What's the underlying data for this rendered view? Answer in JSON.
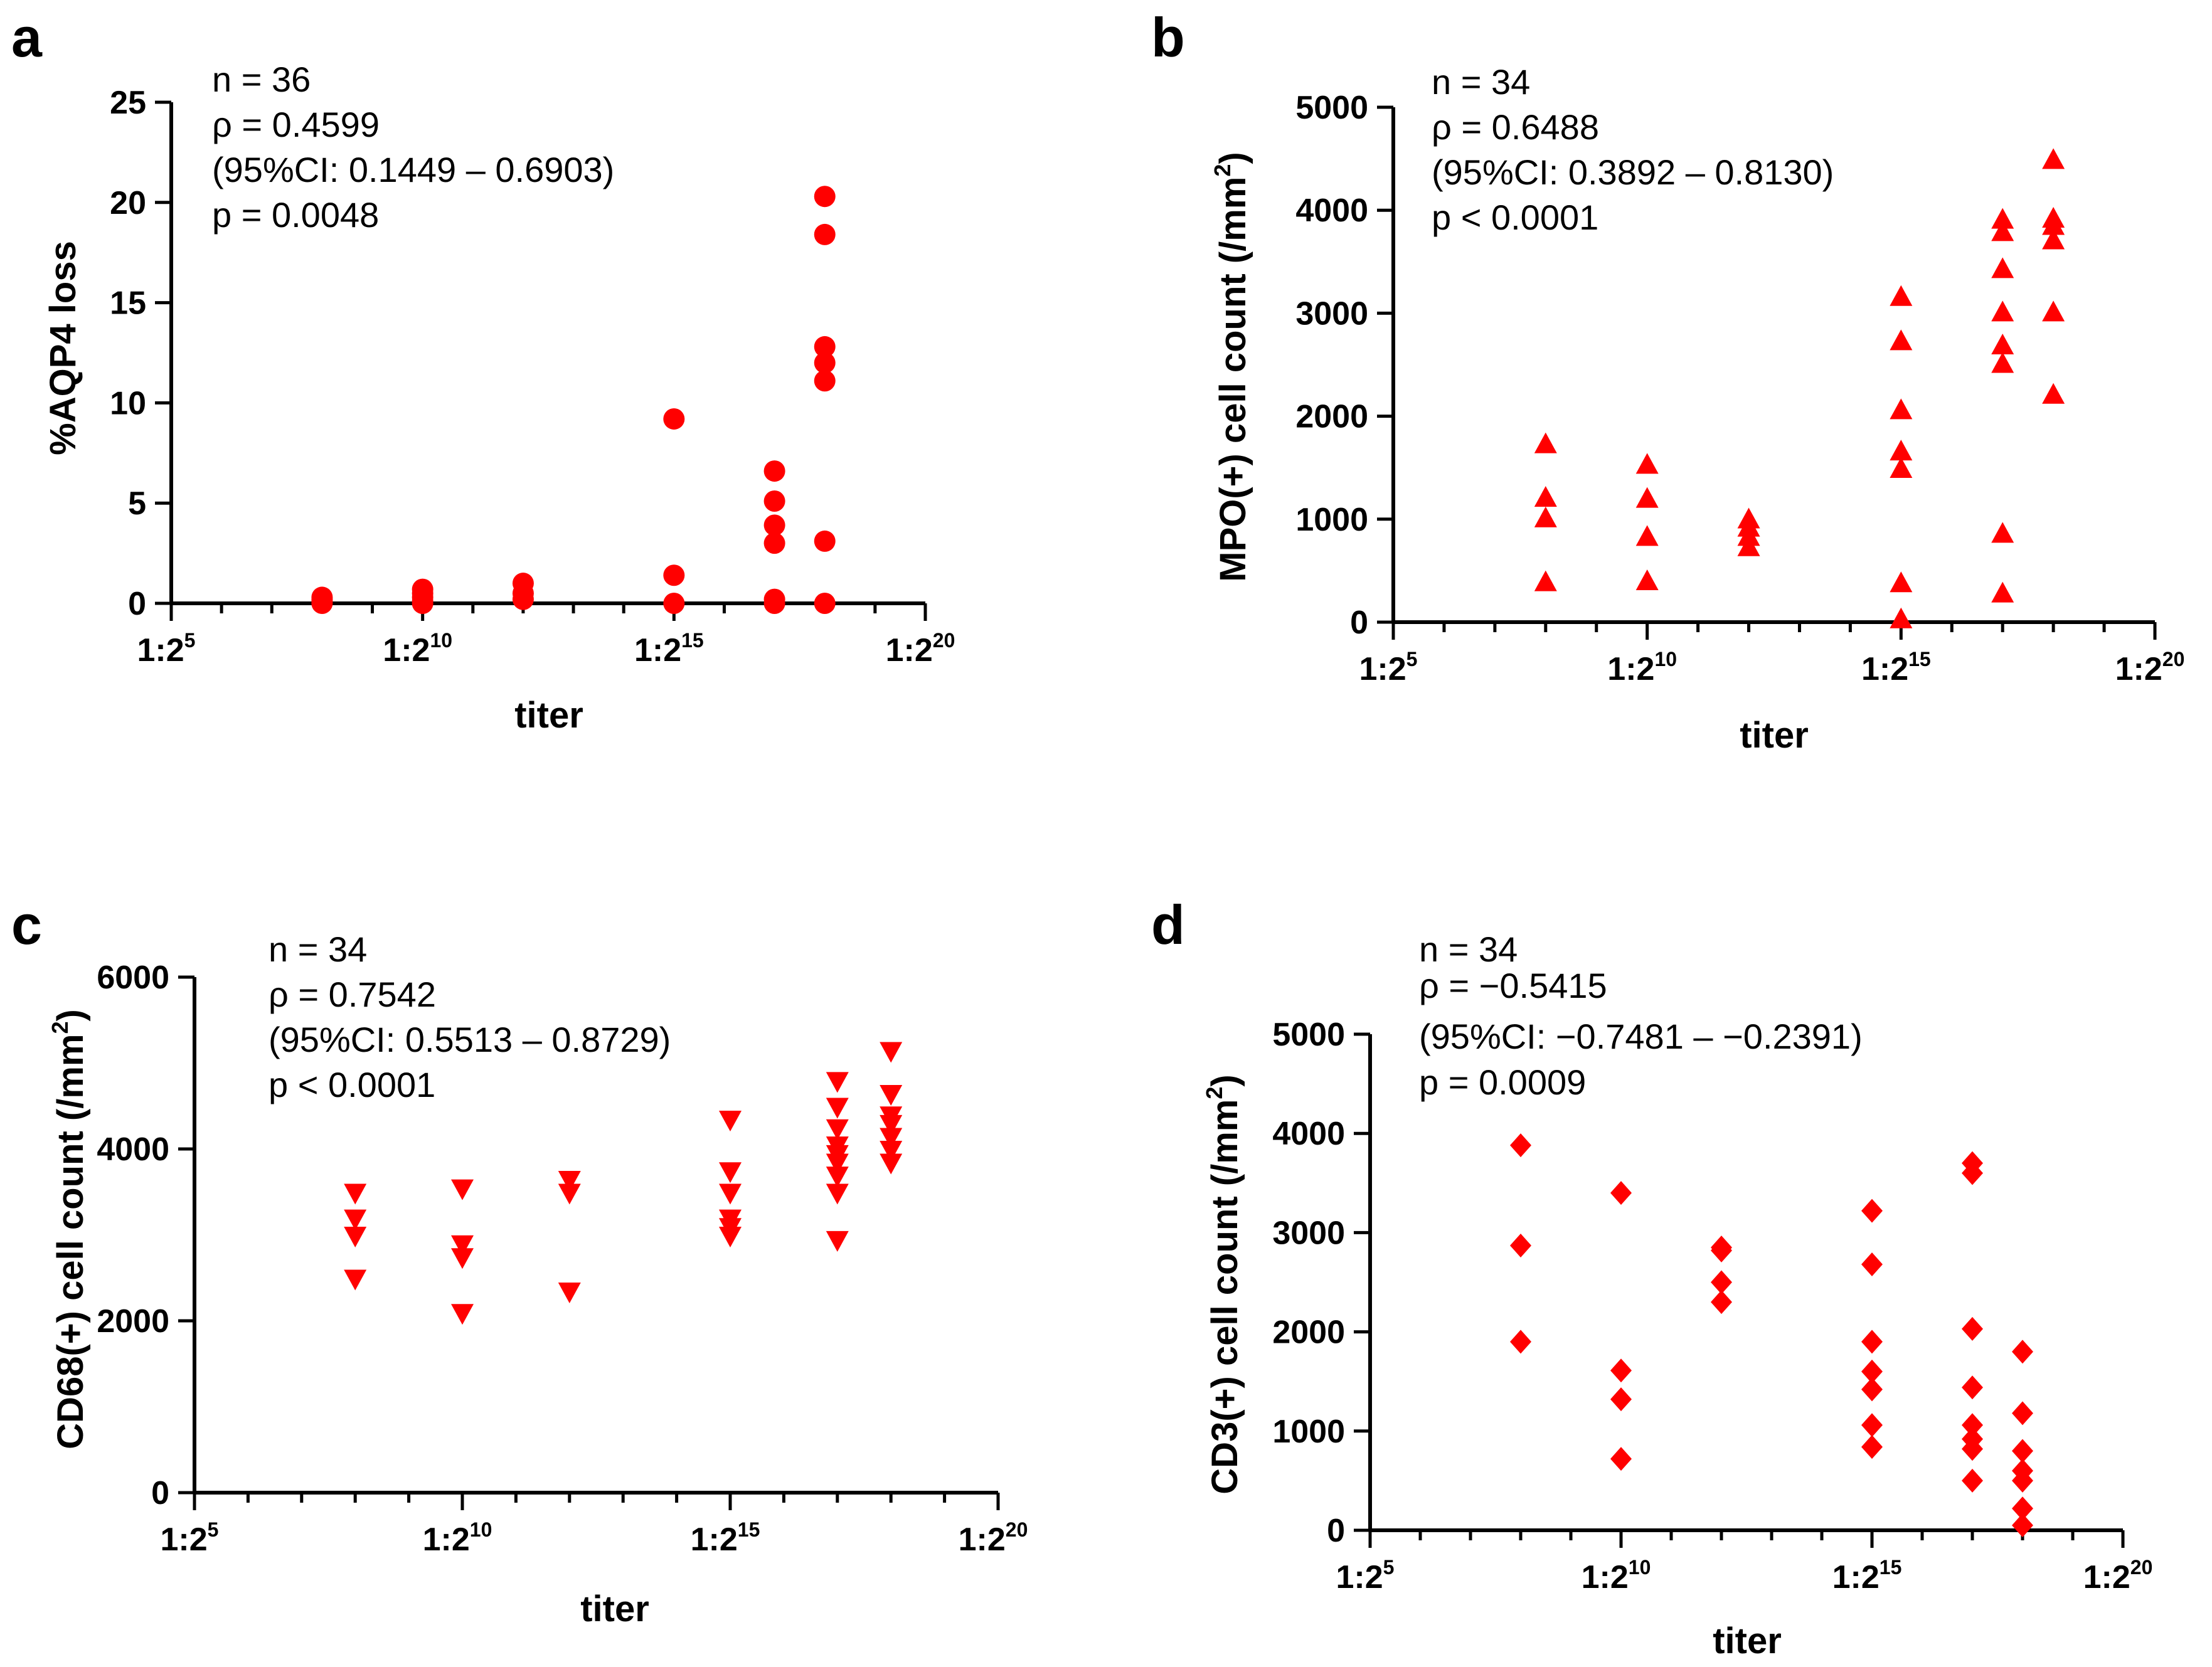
{
  "colors": {
    "marker": "#ff0000",
    "axis": "#000000",
    "background": "#ffffff"
  },
  "chart_data": [
    {
      "panel": "a",
      "type": "scatter",
      "marker": "circle",
      "xlabel": "titer",
      "ylabel": "%AQP4 loss",
      "xlim": [
        5,
        20
      ],
      "ylim": [
        0,
        25
      ],
      "x_ticks": [
        {
          "base": "1:2",
          "exp": "5"
        },
        {
          "base": "1:2",
          "exp": "10"
        },
        {
          "base": "1:2",
          "exp": "15"
        },
        {
          "base": "1:2",
          "exp": "20"
        }
      ],
      "y_ticks": [
        "0",
        "5",
        "10",
        "15",
        "20",
        "25"
      ],
      "stats": [
        "n = 36",
        "ρ = 0.4599",
        "(95%CI: 0.1449 – 0.6903)",
        "p = 0.0048"
      ],
      "points": [
        [
          8,
          0.0
        ],
        [
          8,
          0.1
        ],
        [
          8,
          0.2
        ],
        [
          8,
          0.3
        ],
        [
          10,
          0.0
        ],
        [
          10,
          0.1
        ],
        [
          10,
          0.3
        ],
        [
          10,
          0.5
        ],
        [
          10,
          0.7
        ],
        [
          12,
          0.2
        ],
        [
          12,
          0.5
        ],
        [
          12,
          1.0
        ],
        [
          15,
          0.0
        ],
        [
          15,
          1.4
        ],
        [
          15,
          9.2
        ],
        [
          17,
          0.0
        ],
        [
          17,
          0.2
        ],
        [
          17,
          3.0
        ],
        [
          17,
          3.9
        ],
        [
          17,
          5.1
        ],
        [
          17,
          6.6
        ],
        [
          18,
          0.0
        ],
        [
          18,
          3.1
        ],
        [
          18,
          11.1
        ],
        [
          18,
          12.0
        ],
        [
          18,
          12.8
        ],
        [
          18,
          18.4
        ],
        [
          18,
          20.3
        ]
      ]
    },
    {
      "panel": "b",
      "type": "scatter",
      "marker": "triangle-up",
      "xlabel": "titer",
      "ylabel": "MPO(+) cell count (/mm",
      "ylabel_sup": "2",
      "ylabel_end": ")",
      "xlim": [
        5,
        20
      ],
      "ylim": [
        0,
        5000
      ],
      "x_ticks": [
        {
          "base": "1:2",
          "exp": "5"
        },
        {
          "base": "1:2",
          "exp": "10"
        },
        {
          "base": "1:2",
          "exp": "15"
        },
        {
          "base": "1:2",
          "exp": "20"
        }
      ],
      "y_ticks": [
        "0",
        "1000",
        "2000",
        "3000",
        "4000",
        "5000"
      ],
      "stats": [
        "n = 34",
        "ρ = 0.6488",
        "(95%CI: 0.3892 – 0.8130)",
        "p < 0.0001"
      ],
      "points": [
        [
          8,
          380
        ],
        [
          8,
          1000
        ],
        [
          8,
          1200
        ],
        [
          8,
          1720
        ],
        [
          10,
          390
        ],
        [
          10,
          820
        ],
        [
          10,
          1190
        ],
        [
          10,
          1520
        ],
        [
          12,
          720
        ],
        [
          12,
          820
        ],
        [
          12,
          910
        ],
        [
          12,
          990
        ],
        [
          15,
          20
        ],
        [
          15,
          370
        ],
        [
          15,
          1480
        ],
        [
          15,
          1650
        ],
        [
          15,
          2050
        ],
        [
          15,
          2720
        ],
        [
          15,
          3150
        ],
        [
          17,
          270
        ],
        [
          17,
          850
        ],
        [
          17,
          2500
        ],
        [
          17,
          2680
        ],
        [
          17,
          3000
        ],
        [
          17,
          3420
        ],
        [
          17,
          3780
        ],
        [
          17,
          3900
        ],
        [
          18,
          2200
        ],
        [
          18,
          3000
        ],
        [
          18,
          3700
        ],
        [
          18,
          3840
        ],
        [
          18,
          3910
        ],
        [
          18,
          4480
        ]
      ]
    },
    {
      "panel": "c",
      "type": "scatter",
      "marker": "triangle-down",
      "xlabel": "titer",
      "ylabel": "CD68(+) cell count (/mm",
      "ylabel_sup": "2",
      "ylabel_end": ")",
      "xlim": [
        5,
        20
      ],
      "ylim": [
        0,
        6000
      ],
      "x_ticks": [
        {
          "base": "1:2",
          "exp": "5"
        },
        {
          "base": "1:2",
          "exp": "10"
        },
        {
          "base": "1:2",
          "exp": "15"
        },
        {
          "base": "1:2",
          "exp": "20"
        }
      ],
      "y_ticks": [
        "0",
        "2000",
        "4000",
        "6000"
      ],
      "stats": [
        "n = 34",
        "ρ = 0.7542",
        "(95%CI: 0.5513 – 0.8729)",
        "p < 0.0001"
      ],
      "points": [
        [
          8,
          2500
        ],
        [
          8,
          3000
        ],
        [
          8,
          3200
        ],
        [
          8,
          3500
        ],
        [
          10,
          2100
        ],
        [
          10,
          2750
        ],
        [
          10,
          2900
        ],
        [
          10,
          3550
        ],
        [
          12,
          2350
        ],
        [
          12,
          3500
        ],
        [
          12,
          3650
        ],
        [
          15,
          3000
        ],
        [
          15,
          3100
        ],
        [
          15,
          3200
        ],
        [
          15,
          3500
        ],
        [
          15,
          3750
        ],
        [
          15,
          4350
        ],
        [
          17,
          2950
        ],
        [
          17,
          3500
        ],
        [
          17,
          3700
        ],
        [
          17,
          3850
        ],
        [
          17,
          3950
        ],
        [
          17,
          4050
        ],
        [
          17,
          4250
        ],
        [
          17,
          4500
        ],
        [
          17,
          4800
        ],
        [
          18,
          3850
        ],
        [
          18,
          4000
        ],
        [
          18,
          4150
        ],
        [
          18,
          4300
        ],
        [
          18,
          4400
        ],
        [
          18,
          4650
        ],
        [
          18,
          5150
        ]
      ]
    },
    {
      "panel": "d",
      "type": "scatter",
      "marker": "diamond",
      "xlabel": "titer",
      "ylabel": "CD3(+) cell count (/mm",
      "ylabel_sup": "2",
      "ylabel_end": ")",
      "xlim": [
        5,
        20
      ],
      "ylim": [
        0,
        5000
      ],
      "x_ticks": [
        {
          "base": "1:2",
          "exp": "5"
        },
        {
          "base": "1:2",
          "exp": "10"
        },
        {
          "base": "1:2",
          "exp": "15"
        },
        {
          "base": "1:2",
          "exp": "20"
        }
      ],
      "y_ticks": [
        "0",
        "1000",
        "2000",
        "3000",
        "4000",
        "5000"
      ],
      "stats": [
        "n = 34",
        "ρ = −0.5415",
        "(95%CI: −0.7481 – −0.2391)",
        "p = 0.0009"
      ],
      "points": [
        [
          8,
          1900
        ],
        [
          8,
          2870
        ],
        [
          8,
          3880
        ],
        [
          10,
          720
        ],
        [
          10,
          1320
        ],
        [
          10,
          1610
        ],
        [
          10,
          3400
        ],
        [
          12,
          2300
        ],
        [
          12,
          2500
        ],
        [
          12,
          2820
        ],
        [
          12,
          2850
        ],
        [
          15,
          840
        ],
        [
          15,
          1060
        ],
        [
          15,
          1420
        ],
        [
          15,
          1600
        ],
        [
          15,
          1900
        ],
        [
          15,
          2680
        ],
        [
          15,
          3220
        ],
        [
          17,
          500
        ],
        [
          17,
          820
        ],
        [
          17,
          920
        ],
        [
          17,
          1060
        ],
        [
          17,
          1440
        ],
        [
          17,
          2030
        ],
        [
          17,
          3600
        ],
        [
          17,
          3700
        ],
        [
          18,
          50
        ],
        [
          18,
          220
        ],
        [
          18,
          500
        ],
        [
          18,
          600
        ],
        [
          18,
          800
        ],
        [
          18,
          1180
        ],
        [
          18,
          1800
        ]
      ]
    }
  ]
}
